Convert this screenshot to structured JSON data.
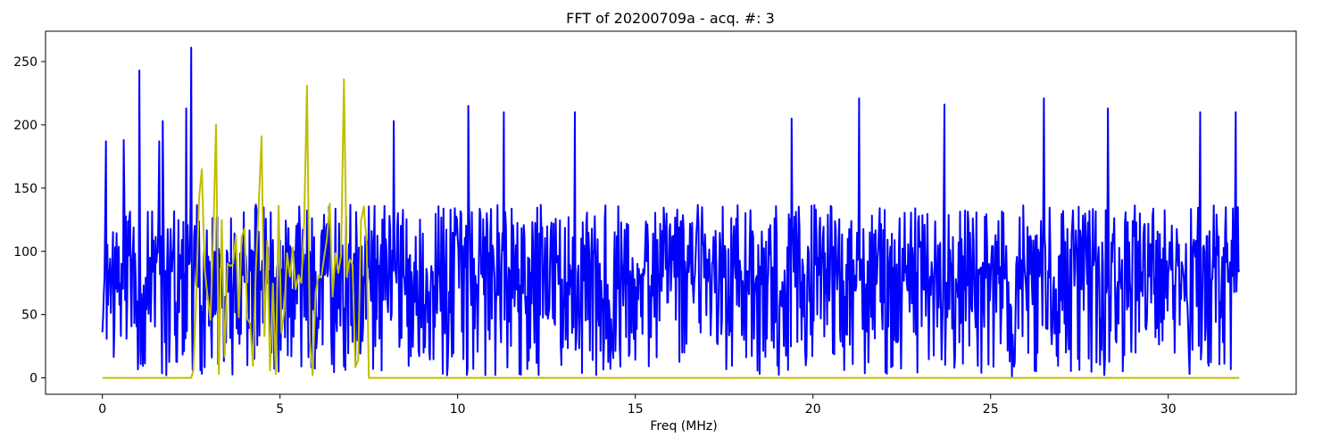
{
  "chart_data": {
    "type": "line",
    "title": "FFT of 20200709a - acq. #: 3",
    "xlabel": "Freq (MHz)",
    "ylabel": "",
    "xlim": [
      -1.6,
      33.6
    ],
    "ylim": [
      -13,
      274
    ],
    "xticks": [
      0,
      5,
      10,
      15,
      20,
      25,
      30
    ],
    "yticks": [
      0,
      50,
      100,
      150,
      200,
      250
    ],
    "grid": false,
    "legend": "none",
    "series": [
      {
        "color": "#0000ff",
        "x_range": [
          0,
          32
        ],
        "num_points": 1600,
        "noise_mean": 80,
        "noise_range": [
          2,
          221
        ],
        "peaks": [
          {
            "x": 0.1,
            "y": 187
          },
          {
            "x": 0.6,
            "y": 188
          },
          {
            "x": 1.05,
            "y": 243
          },
          {
            "x": 1.6,
            "y": 187
          },
          {
            "x": 1.7,
            "y": 203
          },
          {
            "x": 2.35,
            "y": 213
          },
          {
            "x": 2.5,
            "y": 261
          },
          {
            "x": 8.2,
            "y": 203
          },
          {
            "x": 10.3,
            "y": 215
          },
          {
            "x": 11.3,
            "y": 210
          },
          {
            "x": 13.3,
            "y": 210
          },
          {
            "x": 19.4,
            "y": 205
          },
          {
            "x": 21.3,
            "y": 221
          },
          {
            "x": 23.7,
            "y": 216
          },
          {
            "x": 26.5,
            "y": 221
          },
          {
            "x": 28.3,
            "y": 213
          },
          {
            "x": 30.9,
            "y": 210
          },
          {
            "x": 31.9,
            "y": 210
          }
        ],
        "dips": [
          {
            "x": 1.8,
            "y": 2
          },
          {
            "x": 9.7,
            "y": 2
          },
          {
            "x": 18.5,
            "y": 3
          },
          {
            "x": 25.6,
            "y": 1
          },
          {
            "x": 30.6,
            "y": 3
          }
        ]
      },
      {
        "color": "#bfbf00",
        "baseline": 0,
        "band": [
          2.5,
          7.5
        ],
        "x_range": [
          0,
          32
        ],
        "num_points": 400,
        "noise_mean": 80,
        "noise_range": [
          2,
          236
        ],
        "peaks": [
          {
            "x": 2.8,
            "y": 165
          },
          {
            "x": 3.2,
            "y": 200
          },
          {
            "x": 4.5,
            "y": 191
          },
          {
            "x": 5.8,
            "y": 231
          },
          {
            "x": 6.8,
            "y": 236
          }
        ],
        "dips": [
          {
            "x": 5.9,
            "y": 2
          },
          {
            "x": 4.9,
            "y": 3
          }
        ]
      }
    ]
  }
}
